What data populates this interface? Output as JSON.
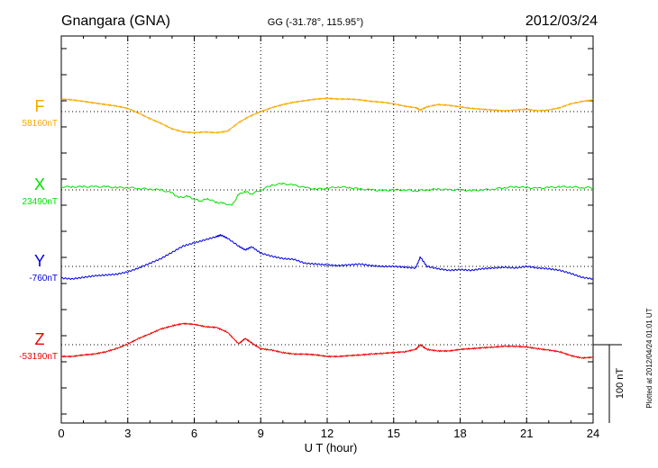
{
  "header": {
    "station": "Gnangara (GNA)",
    "coords": "GG (-31.78°, 115.95°)",
    "date": "2012/03/24"
  },
  "footer": {
    "plotted": "Plotted at 2012/04/24 01:01 UT"
  },
  "chart_data": {
    "type": "line",
    "xlabel": "U T (hour)",
    "xlim": [
      0,
      24
    ],
    "x_ticks": [
      0,
      3,
      6,
      9,
      12,
      15,
      18,
      21,
      24
    ],
    "x_tick_labels": [
      "0",
      "3",
      "6",
      "9",
      "12",
      "15",
      "18",
      "21",
      "24"
    ],
    "grid": true,
    "scale_bar": {
      "label": "100 nT",
      "nT": 100
    },
    "series": [
      {
        "name": "F",
        "baseline": "58160nT",
        "color": "#f5a800",
        "x": [
          0,
          0.5,
          1,
          1.5,
          2,
          2.5,
          3,
          3.5,
          4,
          4.5,
          5,
          5.5,
          6,
          6.5,
          7,
          7.5,
          8,
          8.5,
          9,
          9.5,
          10,
          10.5,
          11,
          11.5,
          12,
          12.5,
          13,
          13.5,
          14,
          14.5,
          15,
          15.5,
          16,
          16.2,
          16.5,
          17,
          17.5,
          18,
          18.5,
          19,
          19.5,
          20,
          20.5,
          21,
          21.5,
          22,
          22.5,
          23,
          23.5,
          24
        ],
        "values": [
          16,
          15,
          13,
          11,
          9,
          7,
          4,
          -2,
          -9,
          -15,
          -22,
          -26,
          -27,
          -26,
          -27,
          -25,
          -14,
          -6,
          0,
          5,
          9,
          12,
          14,
          16,
          17,
          16,
          16,
          15,
          13,
          12,
          10,
          7,
          5,
          2,
          6,
          9,
          8,
          6,
          4,
          3,
          2,
          1,
          2,
          3,
          1,
          2,
          5,
          10,
          13,
          15
        ]
      },
      {
        "name": "X",
        "baseline": "23490nT",
        "color": "#00dd00",
        "x": [
          0,
          0.5,
          1,
          1.5,
          2,
          2.5,
          3,
          3.5,
          4,
          4.5,
          5,
          5.3,
          5.7,
          6,
          6.3,
          6.6,
          7,
          7.3,
          7.7,
          8,
          8.3,
          8.6,
          9,
          9.5,
          10,
          10.5,
          11,
          11.5,
          12,
          12.5,
          13,
          13.5,
          14,
          14.5,
          15,
          15.5,
          16,
          16.5,
          17,
          17.5,
          18,
          18.5,
          19,
          19.5,
          20,
          20.5,
          21,
          21.5,
          22,
          22.5,
          23,
          23.5,
          24
        ],
        "values": [
          4,
          4,
          4,
          4,
          4,
          3,
          3,
          2,
          1,
          0,
          -4,
          -10,
          -8,
          -12,
          -14,
          -11,
          -16,
          -17,
          -20,
          -6,
          -2,
          -5,
          0,
          6,
          8,
          6,
          3,
          1,
          2,
          4,
          3,
          1,
          0,
          -1,
          0,
          0,
          -1,
          0,
          1,
          0,
          0,
          -1,
          0,
          1,
          3,
          4,
          3,
          2,
          3,
          4,
          4,
          3,
          3
        ]
      },
      {
        "name": "Y",
        "baseline": "-760nT",
        "color": "#0000dd",
        "x": [
          0,
          0.5,
          1,
          1.5,
          2,
          2.5,
          3,
          3.5,
          4,
          4.5,
          5,
          5.5,
          6,
          6.5,
          7,
          7.2,
          7.5,
          8,
          8.3,
          8.6,
          9,
          9.5,
          10,
          10.5,
          11,
          11.5,
          12,
          12.5,
          13,
          13.5,
          14,
          14.5,
          15,
          15.5,
          16,
          16.2,
          16.5,
          17,
          17.5,
          18,
          18.5,
          19,
          19.5,
          20,
          20.5,
          21,
          21.5,
          22,
          22.5,
          23,
          23.5,
          24
        ],
        "values": [
          -15,
          -16,
          -14,
          -12,
          -11,
          -10,
          -7,
          -2,
          4,
          10,
          18,
          26,
          30,
          34,
          38,
          40,
          36,
          26,
          21,
          25,
          17,
          13,
          10,
          9,
          4,
          3,
          2,
          1,
          2,
          3,
          1,
          0,
          0,
          -1,
          -2,
          12,
          0,
          -3,
          -5,
          -4,
          -5,
          -3,
          -2,
          -1,
          -2,
          0,
          -2,
          -3,
          -5,
          -9,
          -14,
          -16
        ]
      },
      {
        "name": "Z",
        "baseline": "-53190nT",
        "color": "#ee0000",
        "x": [
          0,
          0.5,
          1,
          1.5,
          2,
          2.5,
          3,
          3.5,
          4,
          4.5,
          5,
          5.5,
          6,
          6.5,
          7,
          7.5,
          8,
          8.3,
          8.6,
          9,
          9.5,
          10,
          10.5,
          11,
          11.5,
          12,
          12.5,
          13,
          13.5,
          14,
          14.5,
          15,
          15.5,
          16,
          16.2,
          16.5,
          17,
          17.5,
          18,
          18.5,
          19,
          19.5,
          20,
          20.5,
          21,
          21.5,
          22,
          22.5,
          23,
          23.5,
          24
        ],
        "values": [
          -15,
          -15,
          -13,
          -12,
          -9,
          -5,
          1,
          8,
          14,
          20,
          24,
          27,
          26,
          23,
          22,
          16,
          1,
          8,
          2,
          -5,
          -7,
          -10,
          -12,
          -12,
          -13,
          -15,
          -15,
          -14,
          -13,
          -12,
          -11,
          -10,
          -9,
          -6,
          0,
          -6,
          -8,
          -8,
          -6,
          -5,
          -4,
          -3,
          -2,
          -2,
          -3,
          -5,
          -7,
          -9,
          -14,
          -17,
          -16
        ]
      }
    ]
  }
}
